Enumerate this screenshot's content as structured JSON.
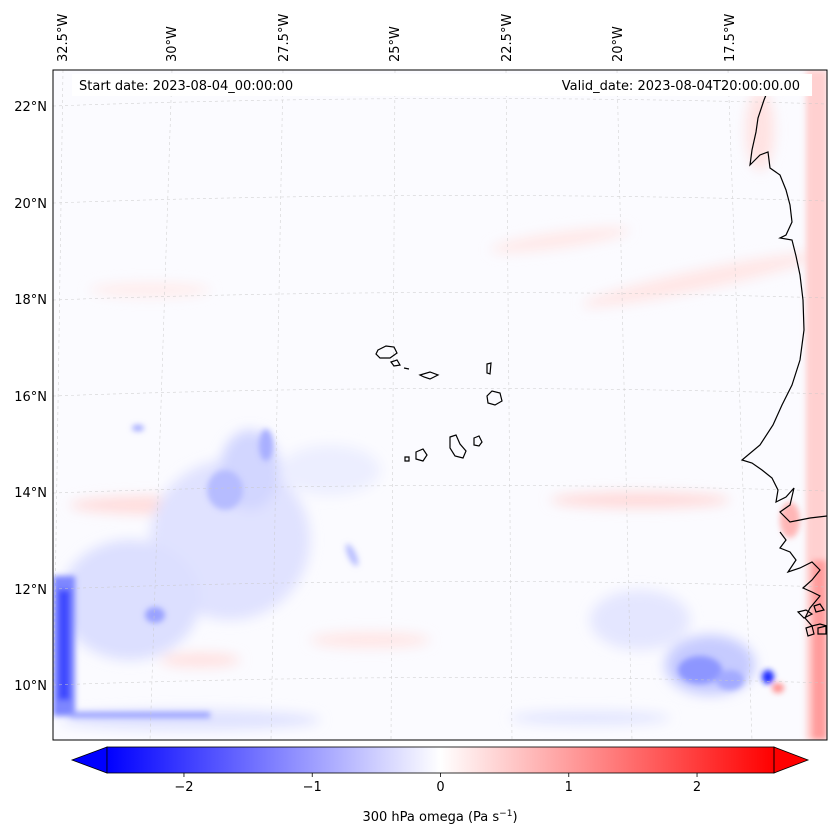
{
  "map": {
    "start_label": "Start date: 2023-08-04_00:00:00",
    "valid_label": "Valid_date: 2023-08-04T20:00:00.00",
    "lon_labels": [
      "32.5°W",
      "30°W",
      "27.5°W",
      "25°W",
      "22.5°W",
      "20°W",
      "17.5°W"
    ],
    "lat_labels": [
      "22°N",
      "20°N",
      "18°N",
      "16°N",
      "14°N",
      "12°N",
      "10°N"
    ],
    "extent": {
      "lon_min": -33.0,
      "lon_max": -15.5,
      "lat_min": 9.0,
      "lat_max": 22.8
    },
    "gridlines": true,
    "coastline_color": "#000000"
  },
  "colorbar": {
    "label_text": "300 hPa omega (Pa s",
    "label_sup": "−1",
    "label_close": ")",
    "ticks": [
      "−2",
      "−1",
      "0",
      "1",
      "2"
    ],
    "tick_values": [
      -2,
      -1,
      0,
      1,
      2
    ],
    "range": [
      -2.6,
      2.6
    ],
    "cmap": "bwr",
    "extend": "both",
    "low_color": "#0000ff",
    "mid_color": "#ffffff",
    "high_color": "#ff0000"
  }
}
